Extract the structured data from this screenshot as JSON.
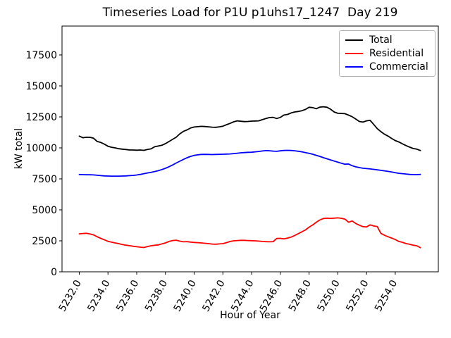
{
  "figure": {
    "title": "Timeseries Load for P1U p1uhs17_1247  Day 219",
    "xlabel": "Hour of Year",
    "ylabel": "kW total"
  },
  "legend": {
    "position": "upper right",
    "entries": [
      {
        "label": "Total",
        "color": "#000000"
      },
      {
        "label": "Residential",
        "color": "#ff0000"
      },
      {
        "label": "Commercial",
        "color": "#0000ff"
      }
    ]
  },
  "chart_data": {
    "type": "line",
    "title": "Timeseries Load for P1U p1uhs17_1247  Day 219",
    "xlabel": "Hour of Year",
    "ylabel": "kW total",
    "grid": false,
    "legend_position": "upper right",
    "xlim": [
      5230.8,
      5257.0
    ],
    "ylim": [
      0,
      19830
    ],
    "x_ticks": [
      5232,
      5234,
      5236,
      5238,
      5240,
      5242,
      5244,
      5246,
      5248,
      5250,
      5252,
      5254
    ],
    "x_tick_labels": [
      "5232.0",
      "5234.0",
      "5236.0",
      "5238.0",
      "5240.0",
      "5242.0",
      "5244.0",
      "5246.0",
      "5248.0",
      "5250.0",
      "5252.0",
      "5254.0"
    ],
    "y_ticks": [
      0,
      2500,
      5000,
      7500,
      10000,
      12500,
      15000,
      17500
    ],
    "y_tick_labels": [
      "0",
      "2500",
      "5000",
      "7500",
      "10000",
      "12500",
      "15000",
      "17500"
    ],
    "x_start": 5232.0,
    "x_step": 0.25,
    "series": [
      {
        "name": "Total",
        "color": "#000000",
        "values": [
          10950,
          10820,
          10860,
          10850,
          10780,
          10520,
          10440,
          10300,
          10130,
          10050,
          10000,
          9930,
          9900,
          9870,
          9830,
          9830,
          9810,
          9830,
          9800,
          9870,
          9920,
          10090,
          10150,
          10210,
          10340,
          10510,
          10690,
          10860,
          11130,
          11330,
          11450,
          11600,
          11680,
          11710,
          11740,
          11720,
          11700,
          11670,
          11660,
          11700,
          11750,
          11870,
          11980,
          12100,
          12180,
          12150,
          12120,
          12130,
          12160,
          12170,
          12180,
          12280,
          12370,
          12450,
          12460,
          12370,
          12460,
          12650,
          12700,
          12820,
          12900,
          12940,
          13000,
          13100,
          13280,
          13250,
          13160,
          13290,
          13320,
          13280,
          13120,
          12900,
          12790,
          12780,
          12760,
          12640,
          12520,
          12330,
          12130,
          12080,
          12180,
          12220,
          11890,
          11550,
          11310,
          11100,
          10950,
          10760,
          10590,
          10480,
          10330,
          10190,
          10060,
          9950,
          9900,
          9790
        ]
      },
      {
        "name": "Residential",
        "color": "#ff0000",
        "values": [
          3060,
          3090,
          3110,
          3050,
          2980,
          2830,
          2700,
          2580,
          2460,
          2390,
          2330,
          2270,
          2200,
          2150,
          2110,
          2060,
          2020,
          1990,
          1960,
          2040,
          2100,
          2140,
          2170,
          2250,
          2330,
          2450,
          2520,
          2550,
          2480,
          2420,
          2440,
          2400,
          2370,
          2350,
          2330,
          2300,
          2270,
          2240,
          2230,
          2250,
          2270,
          2350,
          2450,
          2500,
          2520,
          2540,
          2540,
          2520,
          2510,
          2500,
          2480,
          2450,
          2430,
          2420,
          2430,
          2690,
          2700,
          2660,
          2720,
          2800,
          2930,
          3080,
          3230,
          3380,
          3600,
          3780,
          4000,
          4180,
          4300,
          4330,
          4310,
          4330,
          4350,
          4320,
          4250,
          4000,
          4100,
          3900,
          3760,
          3650,
          3620,
          3790,
          3700,
          3650,
          3100,
          2950,
          2830,
          2720,
          2600,
          2450,
          2380,
          2280,
          2220,
          2150,
          2100,
          1950
        ]
      },
      {
        "name": "Commercial",
        "color": "#0000ff",
        "values": [
          7850,
          7840,
          7830,
          7830,
          7820,
          7790,
          7760,
          7740,
          7730,
          7720,
          7720,
          7720,
          7730,
          7740,
          7760,
          7780,
          7810,
          7860,
          7920,
          7980,
          8030,
          8090,
          8160,
          8250,
          8350,
          8480,
          8620,
          8780,
          8920,
          9070,
          9200,
          9310,
          9390,
          9440,
          9470,
          9480,
          9470,
          9460,
          9470,
          9480,
          9490,
          9500,
          9510,
          9540,
          9570,
          9600,
          9620,
          9640,
          9650,
          9680,
          9710,
          9750,
          9780,
          9770,
          9740,
          9720,
          9760,
          9790,
          9800,
          9790,
          9770,
          9730,
          9680,
          9620,
          9560,
          9490,
          9400,
          9310,
          9210,
          9120,
          9030,
          8940,
          8850,
          8760,
          8680,
          8700,
          8560,
          8470,
          8410,
          8360,
          8330,
          8300,
          8270,
          8230,
          8190,
          8150,
          8100,
          8050,
          8000,
          7950,
          7920,
          7890,
          7860,
          7840,
          7840,
          7860
        ]
      }
    ]
  }
}
